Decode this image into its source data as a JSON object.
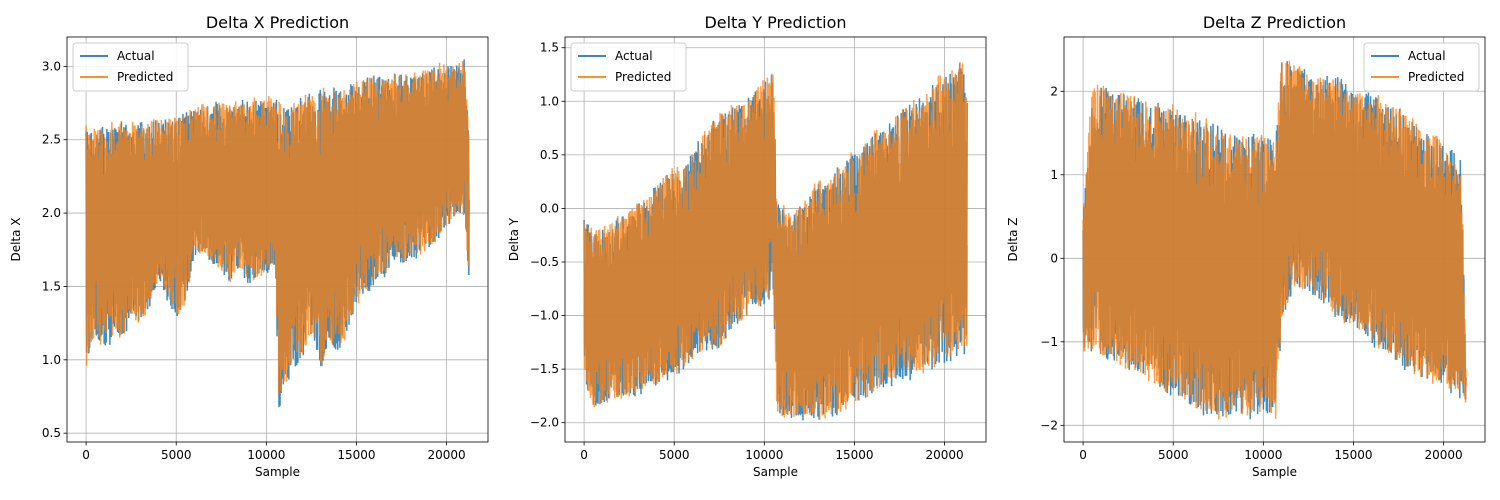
{
  "colors": {
    "actual": "#1f77b4",
    "predicted": "#ff7f0e",
    "grid": "#b0b0b0"
  },
  "chart_data": [
    {
      "type": "line",
      "title": "Delta X Prediction",
      "xlabel": "Sample",
      "ylabel": "Delta X",
      "xlim": [
        -1060,
        22300
      ],
      "ylim": [
        0.44,
        3.2
      ],
      "xticks": [
        0,
        5000,
        10000,
        15000,
        20000
      ],
      "yticks": [
        0.5,
        1.0,
        1.5,
        2.0,
        2.5,
        3.0
      ],
      "ytick_labels": [
        "0.5",
        "1.0",
        "1.5",
        "2.0",
        "2.5",
        "3.0"
      ],
      "grid": true,
      "legend": "upper left",
      "series": [
        {
          "name": "Actual",
          "key": "actual"
        },
        {
          "name": "Predicted",
          "key": "predicted"
        }
      ],
      "n_samples": 21250,
      "envelope": {
        "x": [
          0,
          500,
          1000,
          1500,
          2000,
          2500,
          3000,
          3500,
          4000,
          4500,
          5000,
          5500,
          6000,
          6500,
          7000,
          7500,
          8000,
          8500,
          9000,
          9500,
          10000,
          10500,
          10700,
          11000,
          11500,
          12000,
          12500,
          13000,
          13500,
          14000,
          14500,
          15000,
          15500,
          16000,
          16500,
          17000,
          17500,
          18000,
          18500,
          19000,
          19500,
          20000,
          20500,
          21000,
          21250
        ],
        "upper": [
          2.62,
          2.58,
          2.6,
          2.62,
          2.64,
          2.63,
          2.62,
          2.64,
          2.66,
          2.65,
          2.67,
          2.69,
          2.72,
          2.74,
          2.76,
          2.76,
          2.77,
          2.77,
          2.79,
          2.79,
          2.8,
          2.8,
          2.78,
          2.74,
          2.78,
          2.8,
          2.84,
          2.86,
          2.86,
          2.86,
          2.88,
          2.9,
          2.92,
          2.94,
          2.94,
          2.96,
          2.96,
          2.96,
          2.97,
          3.0,
          3.02,
          3.02,
          3.02,
          3.06,
          2.5
        ],
        "lower": [
          0.89,
          1.15,
          1.05,
          1.12,
          1.1,
          1.28,
          1.22,
          1.3,
          1.52,
          1.4,
          1.25,
          1.36,
          1.67,
          1.72,
          1.62,
          1.58,
          1.52,
          1.6,
          1.48,
          1.55,
          1.57,
          1.6,
          0.58,
          0.8,
          0.92,
          0.99,
          1.18,
          0.92,
          1.06,
          1.05,
          1.15,
          1.36,
          1.42,
          1.5,
          1.55,
          1.62,
          1.65,
          1.66,
          1.7,
          1.75,
          1.8,
          1.9,
          1.98,
          1.96,
          1.55
        ]
      }
    },
    {
      "type": "line",
      "title": "Delta Y Prediction",
      "xlabel": "Sample",
      "ylabel": "Delta Y",
      "xlim": [
        -1060,
        22300
      ],
      "ylim": [
        -2.18,
        1.6
      ],
      "xticks": [
        0,
        5000,
        10000,
        15000,
        20000
      ],
      "yticks": [
        -2.0,
        -1.5,
        -1.0,
        -0.5,
        0.0,
        0.5,
        1.0,
        1.5
      ],
      "ytick_labels": [
        "−2.0",
        "−1.5",
        "−1.0",
        "−0.5",
        "0.0",
        "0.5",
        "1.0",
        "1.5"
      ],
      "grid": true,
      "legend": "upper left",
      "series": [
        {
          "name": "Actual",
          "key": "actual"
        },
        {
          "name": "Predicted",
          "key": "predicted"
        }
      ],
      "n_samples": 21250,
      "envelope": {
        "x": [
          0,
          500,
          1000,
          1500,
          2000,
          2500,
          3000,
          3500,
          4000,
          4500,
          5000,
          5500,
          6000,
          6500,
          7000,
          7500,
          8000,
          8500,
          9000,
          9500,
          10000,
          10500,
          10700,
          11000,
          11500,
          12000,
          12500,
          13000,
          13500,
          14000,
          14500,
          15000,
          15500,
          16000,
          16500,
          17000,
          17500,
          18000,
          18500,
          19000,
          19500,
          20000,
          20500,
          21000,
          21250
        ],
        "upper": [
          -0.06,
          -0.2,
          -0.18,
          -0.12,
          -0.05,
          -0.02,
          0.05,
          0.12,
          0.22,
          0.32,
          0.4,
          0.42,
          0.55,
          0.7,
          0.8,
          0.88,
          0.95,
          1.0,
          1.05,
          1.1,
          1.22,
          1.3,
          0.06,
          0.04,
          -0.06,
          0.08,
          0.12,
          0.3,
          0.28,
          0.4,
          0.48,
          0.55,
          0.6,
          0.72,
          0.78,
          0.82,
          0.9,
          1.0,
          1.02,
          1.1,
          1.22,
          1.3,
          1.32,
          1.42,
          1.1
        ],
        "lower": [
          -1.6,
          -1.88,
          -1.86,
          -1.8,
          -1.8,
          -1.78,
          -1.75,
          -1.72,
          -1.65,
          -1.62,
          -1.58,
          -1.55,
          -1.48,
          -1.42,
          -1.38,
          -1.32,
          -1.22,
          -1.12,
          -1.05,
          -0.98,
          -0.9,
          -0.82,
          -1.9,
          -2.0,
          -2.0,
          -2.0,
          -2.0,
          -2.0,
          -1.98,
          -1.95,
          -1.9,
          -1.85,
          -1.8,
          -1.78,
          -1.7,
          -1.68,
          -1.65,
          -1.62,
          -1.6,
          -1.55,
          -1.52,
          -1.48,
          -1.42,
          -1.38,
          -1.4
        ]
      }
    },
    {
      "type": "line",
      "title": "Delta Z Prediction",
      "xlabel": "Sample",
      "ylabel": "Delta Z",
      "xlim": [
        -1060,
        22300
      ],
      "ylim": [
        -2.2,
        2.65
      ],
      "xticks": [
        0,
        5000,
        10000,
        15000,
        20000
      ],
      "yticks": [
        -2,
        -1,
        0,
        1,
        2
      ],
      "ytick_labels": [
        "−2",
        "−1",
        "0",
        "1",
        "2"
      ],
      "grid": true,
      "legend": "upper right",
      "series": [
        {
          "name": "Actual",
          "key": "actual"
        },
        {
          "name": "Predicted",
          "key": "predicted"
        }
      ],
      "n_samples": 21250,
      "envelope": {
        "x": [
          0,
          500,
          1000,
          1500,
          2000,
          2500,
          3000,
          3500,
          4000,
          4500,
          5000,
          5500,
          6000,
          6500,
          7000,
          7500,
          8000,
          8500,
          9000,
          9500,
          10000,
          10500,
          10700,
          11000,
          11500,
          12000,
          12500,
          13000,
          13500,
          14000,
          14500,
          15000,
          15500,
          16000,
          16500,
          17000,
          17500,
          18000,
          18500,
          19000,
          19500,
          20000,
          20500,
          21000,
          21250
        ],
        "upper": [
          0.5,
          2.15,
          2.05,
          2.05,
          2.02,
          2.0,
          1.95,
          1.92,
          1.9,
          1.85,
          1.88,
          1.8,
          1.75,
          1.72,
          1.65,
          1.6,
          1.55,
          1.5,
          1.45,
          1.5,
          1.5,
          1.42,
          1.5,
          2.38,
          2.38,
          2.35,
          2.25,
          2.2,
          2.2,
          2.18,
          2.15,
          2.05,
          2.0,
          1.98,
          1.95,
          1.85,
          1.82,
          1.72,
          1.65,
          1.55,
          1.5,
          1.4,
          1.3,
          1.2,
          -1.4
        ],
        "lower": [
          -1.18,
          -1.15,
          -1.22,
          -1.3,
          -1.35,
          -1.38,
          -1.42,
          -1.5,
          -1.55,
          -1.65,
          -1.7,
          -1.75,
          -1.82,
          -1.88,
          -1.9,
          -1.95,
          -1.95,
          -1.9,
          -1.92,
          -1.95,
          -1.92,
          -1.98,
          -1.95,
          -0.9,
          -0.5,
          -0.4,
          -0.45,
          -0.48,
          -0.6,
          -0.72,
          -0.8,
          -0.82,
          -0.95,
          -1.05,
          -1.12,
          -1.2,
          -1.3,
          -1.38,
          -1.42,
          -1.48,
          -1.55,
          -1.6,
          -1.65,
          -1.7,
          -1.75
        ]
      }
    }
  ]
}
